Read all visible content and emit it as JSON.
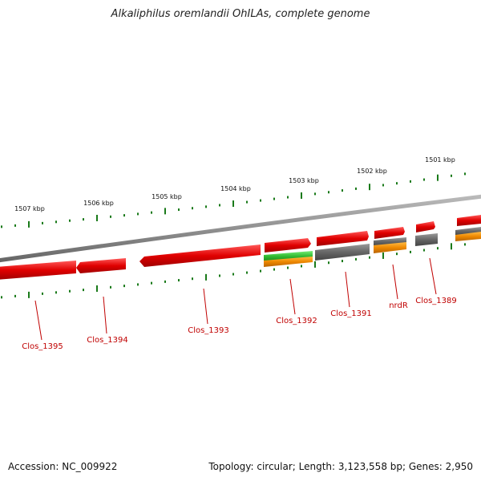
{
  "title": "Alkaliphilus oremlandii OhILAs, complete genome",
  "footer": {
    "accession": "Accession: NC_009922",
    "summary": "Topology: circular; Length: 3,123,558 bp; Genes: 2,950"
  },
  "kbp_labels": [
    "1507 kbp",
    "1506 kbp",
    "1505 kbp",
    "1504 kbp",
    "1503 kbp",
    "1502 kbp",
    "1501 kbp"
  ],
  "gene_labels": [
    "Clos_1395",
    "Clos_1394",
    "Clos_1393",
    "Clos_1392",
    "Clos_1391",
    "nrdR",
    "Clos_1389"
  ],
  "colors": {
    "gene_red": "#e00000",
    "gene_gray": "#666666",
    "gene_orange": "#ee8800",
    "gene_green": "#33bb33",
    "backbone": "#888888",
    "tick_green": "#1a7a1a",
    "label_red": "#c00000"
  }
}
